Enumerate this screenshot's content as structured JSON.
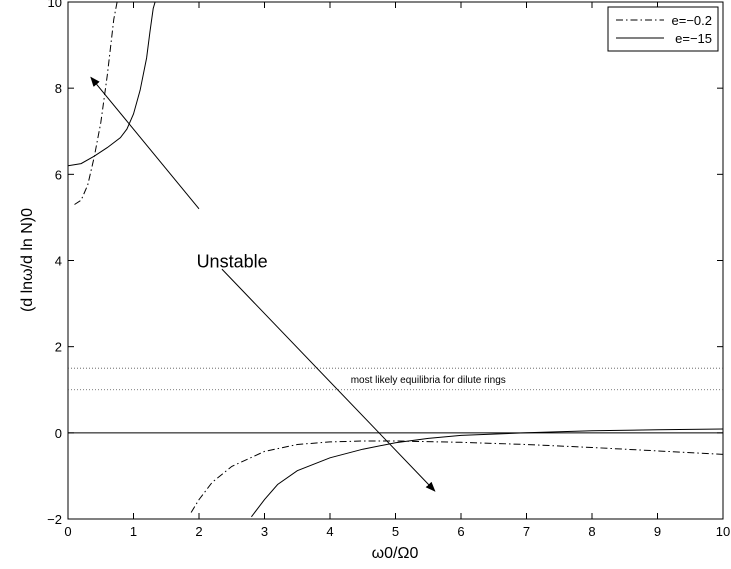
{
  "chart_data": {
    "type": "line",
    "xlabel": "ω0/Ω0",
    "ylabel": "(d lnω/d ln N)0",
    "xlim": [
      0,
      10
    ],
    "ylim": [
      -2,
      10
    ],
    "xticks": [
      0,
      1,
      2,
      3,
      4,
      5,
      6,
      7,
      8,
      9,
      10
    ],
    "yticks": [
      -2,
      0,
      2,
      4,
      6,
      8,
      10
    ],
    "grid": false,
    "legend": "top-right",
    "series": [
      {
        "name": "e=−0.2",
        "style": "dashdot",
        "segments": [
          {
            "x": [
              0.1,
              0.2,
              0.3,
              0.4,
              0.5,
              0.6,
              0.7,
              0.75
            ],
            "y": [
              5.3,
              5.4,
              5.75,
              6.4,
              7.2,
              8.3,
              9.6,
              10
            ]
          },
          {
            "x": [
              1.88,
              2.0,
              2.2,
              2.5,
              3.0,
              3.5,
              4.0,
              4.5,
              5.0,
              6.0,
              7.0,
              8.0,
              9.0,
              10.0
            ],
            "y": [
              -1.85,
              -1.55,
              -1.15,
              -0.78,
              -0.43,
              -0.27,
              -0.21,
              -0.19,
              -0.19,
              -0.22,
              -0.27,
              -0.34,
              -0.42,
              -0.5
            ]
          }
        ]
      },
      {
        "name": "e=−15",
        "style": "solid",
        "segments": [
          {
            "x": [
              0,
              0.2,
              0.4,
              0.6,
              0.8,
              0.9,
              1.0,
              1.1,
              1.2,
              1.25,
              1.3,
              1.33
            ],
            "y": [
              6.2,
              6.25,
              6.42,
              6.62,
              6.85,
              7.05,
              7.4,
              7.95,
              8.7,
              9.3,
              9.85,
              10
            ]
          },
          {
            "x": [
              2.8,
              3.0,
              3.2,
              3.5,
              4.0,
              4.5,
              5.0,
              5.5,
              6.0,
              7.0,
              8.0,
              9.0,
              10.0
            ],
            "y": [
              -1.95,
              -1.55,
              -1.2,
              -0.88,
              -0.58,
              -0.38,
              -0.23,
              -0.13,
              -0.06,
              0.0,
              0.05,
              0.07,
              0.09
            ]
          }
        ]
      }
    ],
    "reference_lines": {
      "zero": 0,
      "dotted": [
        1.0,
        1.5
      ]
    },
    "annotations": {
      "band_label": {
        "text": "most likely equilibria for dilute rings",
        "x": 5.5,
        "y": 1.25
      },
      "unstable": {
        "text": "Unstable",
        "x": 2.65,
        "y": 4.0,
        "arrow_upper": {
          "from": [
            2.0,
            5.2
          ],
          "to": [
            0.35,
            8.25
          ]
        },
        "arrow_lower": {
          "from": [
            2.35,
            3.8
          ],
          "to": [
            5.6,
            -1.35
          ]
        }
      }
    }
  }
}
